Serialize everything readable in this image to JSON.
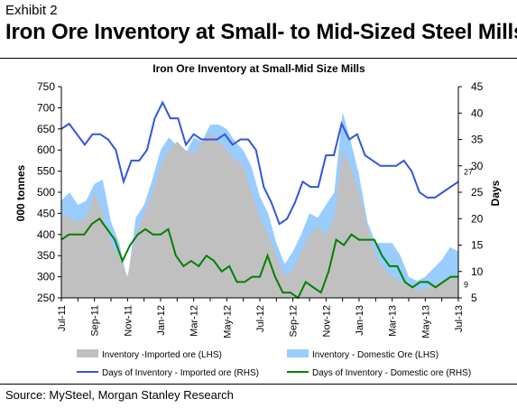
{
  "header": {
    "exhibit_label": "Exhibit 2",
    "headline": "Iron Ore Inventory at Small- to Mid-Sized Steel Mills"
  },
  "footer": {
    "source": "Source: MySteel, Morgan Stanley Research"
  },
  "chart_data": {
    "type": "area",
    "title": "Iron Ore Inventory at Small-Mid Size Mills",
    "ylabel_left": "000 tonnes",
    "ylabel_right": "Days",
    "ylim_left": [
      250,
      750
    ],
    "ylim_right": [
      5,
      45
    ],
    "yticks_left": [
      "250",
      "300",
      "350",
      "400",
      "450",
      "500",
      "550",
      "600",
      "650",
      "700",
      "750"
    ],
    "yticks_right": [
      "5",
      "10",
      "15",
      "20",
      "25",
      "30",
      "35",
      "40",
      "45"
    ],
    "x_tick_labels": [
      "Jul-11",
      "Sep-11",
      "Nov-11",
      "Jan-12",
      "Mar-12",
      "May-12",
      "Jul-12",
      "Sep-12",
      "Nov-12",
      "Jan-13",
      "Mar-13",
      "May-13",
      "Jul-13"
    ],
    "colors": {
      "imported_area": "#c0c0c0",
      "domestic_area": "#99ccff",
      "imported_days_line": "#3355dd",
      "domestic_days_line": "#008000"
    },
    "series": [
      {
        "name": "Inventory -Imported ore (LHS)",
        "axis": "left",
        "values": [
          450,
          440,
          430,
          440,
          500,
          450,
          380,
          350,
          300,
          400,
          450,
          500,
          560,
          600,
          620,
          600,
          590,
          620,
          640,
          620,
          600,
          580,
          560,
          500,
          440,
          400,
          350,
          300,
          320,
          360,
          400,
          420,
          400,
          440,
          600,
          560,
          500,
          420,
          350,
          320,
          300,
          290,
          280,
          270,
          270,
          280,
          290,
          300,
          300
        ]
      },
      {
        "name": "Inventory - Domestic Ore (LHS)",
        "axis": "left",
        "values": [
          480,
          500,
          470,
          480,
          520,
          530,
          430,
          380,
          290,
          440,
          470,
          530,
          600,
          630,
          610,
          590,
          630,
          620,
          660,
          660,
          650,
          620,
          600,
          560,
          490,
          450,
          380,
          330,
          360,
          400,
          450,
          440,
          470,
          500,
          690,
          620,
          540,
          430,
          380,
          380,
          380,
          350,
          300,
          290,
          300,
          320,
          340,
          370,
          360
        ]
      },
      {
        "name": "Days of Inventory - Imported ore (RHS)",
        "axis": "right",
        "values": [
          37,
          38,
          36,
          34,
          36,
          36,
          35,
          33,
          27,
          31,
          31,
          33,
          39,
          42,
          39,
          39,
          34,
          36,
          35,
          35,
          35,
          36,
          34,
          35,
          35,
          33,
          26,
          23,
          19,
          20,
          23,
          27,
          26,
          26,
          32,
          32,
          38,
          35,
          36,
          32,
          31,
          30,
          30,
          30,
          31,
          29,
          25,
          24,
          24,
          25,
          26,
          27
        ]
      },
      {
        "name": "Days of Inventory - Domestic ore (RHS)",
        "axis": "right",
        "values": [
          16,
          17,
          17,
          17,
          19,
          20,
          18,
          16,
          12,
          15,
          17,
          18,
          17,
          17,
          18,
          13,
          11,
          12,
          11,
          13,
          12,
          10,
          11,
          8,
          8,
          9,
          9,
          13,
          9,
          6,
          6,
          5,
          8,
          7,
          6,
          10,
          16,
          15,
          17,
          16,
          16,
          16,
          13,
          11,
          11,
          8,
          7,
          8,
          8,
          7,
          8,
          9,
          9
        ]
      }
    ],
    "end_labels": [
      {
        "series": "Days of Inventory - Imported ore (RHS)",
        "text": "27"
      },
      {
        "series": "Days of Inventory - Domestic ore (RHS)",
        "text": "9"
      }
    ],
    "legend_position": "bottom",
    "grid": false
  }
}
